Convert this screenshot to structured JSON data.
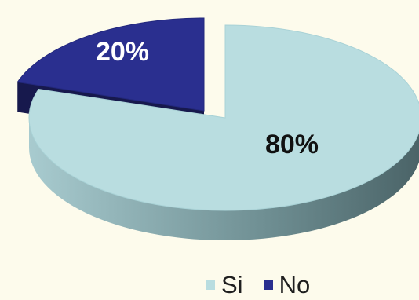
{
  "chart_data": {
    "type": "pie",
    "style": "3d-exploded",
    "categories": [
      "Si",
      "No"
    ],
    "values": [
      80,
      20
    ],
    "labels": [
      "80%",
      "20%"
    ],
    "colors": {
      "Si": "#b9dde0",
      "No": "#2a2f8f"
    },
    "legend": {
      "position": "bottom-right",
      "items": [
        {
          "name": "Si",
          "color": "#b9dde0"
        },
        {
          "name": "No",
          "color": "#2a2f8f"
        }
      ]
    }
  }
}
